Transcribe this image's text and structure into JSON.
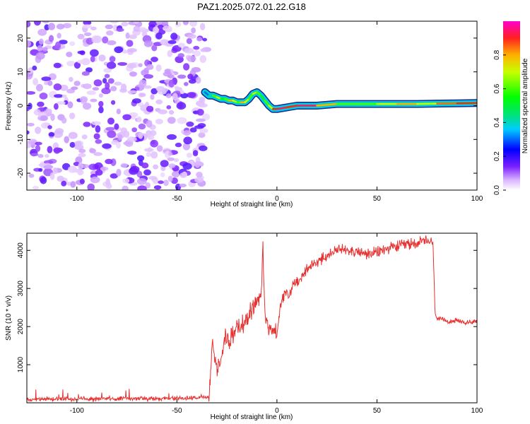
{
  "chart_data": [
    {
      "type": "heatmap",
      "title": "PAZ1.2025.072.01.22.G18",
      "xlabel": "Height of straight line (km)",
      "ylabel": "Frequency (Hz)",
      "xlim": [
        -125,
        100
      ],
      "ylim": [
        -25,
        25
      ],
      "xticks": [
        -100,
        -50,
        0,
        50,
        100
      ],
      "yticks": [
        -20,
        -10,
        0,
        10,
        20
      ],
      "noise_region_x": [
        -125,
        -35
      ],
      "signal_track": {
        "x": [
          -36,
          -34,
          -32,
          -30,
          -28,
          -26,
          -24,
          -22,
          -20,
          -18,
          -16,
          -14,
          -12,
          -10,
          -8,
          -6,
          -4,
          -2,
          0,
          5,
          10,
          20,
          30,
          40,
          50,
          60,
          70,
          80,
          90,
          100
        ],
        "frequency": [
          4,
          3,
          3,
          2.5,
          2,
          2,
          1.5,
          1.5,
          1,
          1,
          1,
          2,
          3.5,
          4,
          3,
          1.5,
          0,
          -1,
          -1,
          -0.5,
          0,
          0,
          0.5,
          0.5,
          0.5,
          0.5,
          0.5,
          0.6,
          0.7,
          0.8
        ],
        "amplitude": [
          0.3,
          0.4,
          0.6,
          0.7,
          0.5,
          0.6,
          0.8,
          0.7,
          0.6,
          0.8,
          0.7,
          0.6,
          0.7,
          0.6,
          0.5,
          0.6,
          0.7,
          0.9,
          0.95,
          0.9,
          0.95,
          0.8,
          0.6,
          0.6,
          0.7,
          0.8,
          0.7,
          0.85,
          0.9,
          0.9
        ]
      },
      "colorbar": {
        "label": "Normalized spectral amplitude",
        "range": [
          0,
          1
        ],
        "ticks": [
          0.0,
          0.2,
          0.4,
          0.6,
          0.8
        ],
        "tick_labels": [
          "0.0",
          "0.2",
          "0.4",
          "0.6",
          "0.8"
        ]
      }
    },
    {
      "type": "line",
      "xlabel": "Height of straight line (km)",
      "ylabel": "SNR (10 * v/v)",
      "xlim": [
        -125,
        100
      ],
      "ylim": [
        0,
        4450
      ],
      "xticks": [
        -100,
        -50,
        0,
        50,
        100
      ],
      "yticks": [
        1000,
        2000,
        3000,
        4000
      ],
      "color": "#e83030",
      "series": [
        {
          "name": "SNR",
          "x": [
            -125,
            -110,
            -100,
            -90,
            -80,
            -70,
            -60,
            -50,
            -40,
            -34,
            -32,
            -30,
            -28,
            -26,
            -24,
            -22,
            -20,
            -18,
            -16,
            -14,
            -12,
            -10,
            -8,
            -7,
            -6,
            -5,
            -4,
            -2,
            0,
            2,
            4,
            6,
            8,
            10,
            12,
            15,
            20,
            25,
            30,
            35,
            40,
            45,
            50,
            55,
            60,
            65,
            70,
            75,
            78,
            79,
            80,
            85,
            90,
            95,
            100
          ],
          "values": [
            90,
            100,
            110,
            110,
            110,
            110,
            110,
            120,
            130,
            150,
            1700,
            800,
            1200,
            1700,
            1650,
            1800,
            1900,
            2000,
            2150,
            2300,
            2500,
            2700,
            2800,
            4000,
            2300,
            2100,
            1950,
            1900,
            1800,
            2600,
            2900,
            2800,
            3100,
            3200,
            3300,
            3500,
            3700,
            3850,
            4000,
            4050,
            3950,
            3900,
            3950,
            4050,
            4100,
            4150,
            4200,
            4250,
            4200,
            2400,
            2200,
            2150,
            2150,
            2100,
            2150
          ]
        }
      ]
    }
  ]
}
